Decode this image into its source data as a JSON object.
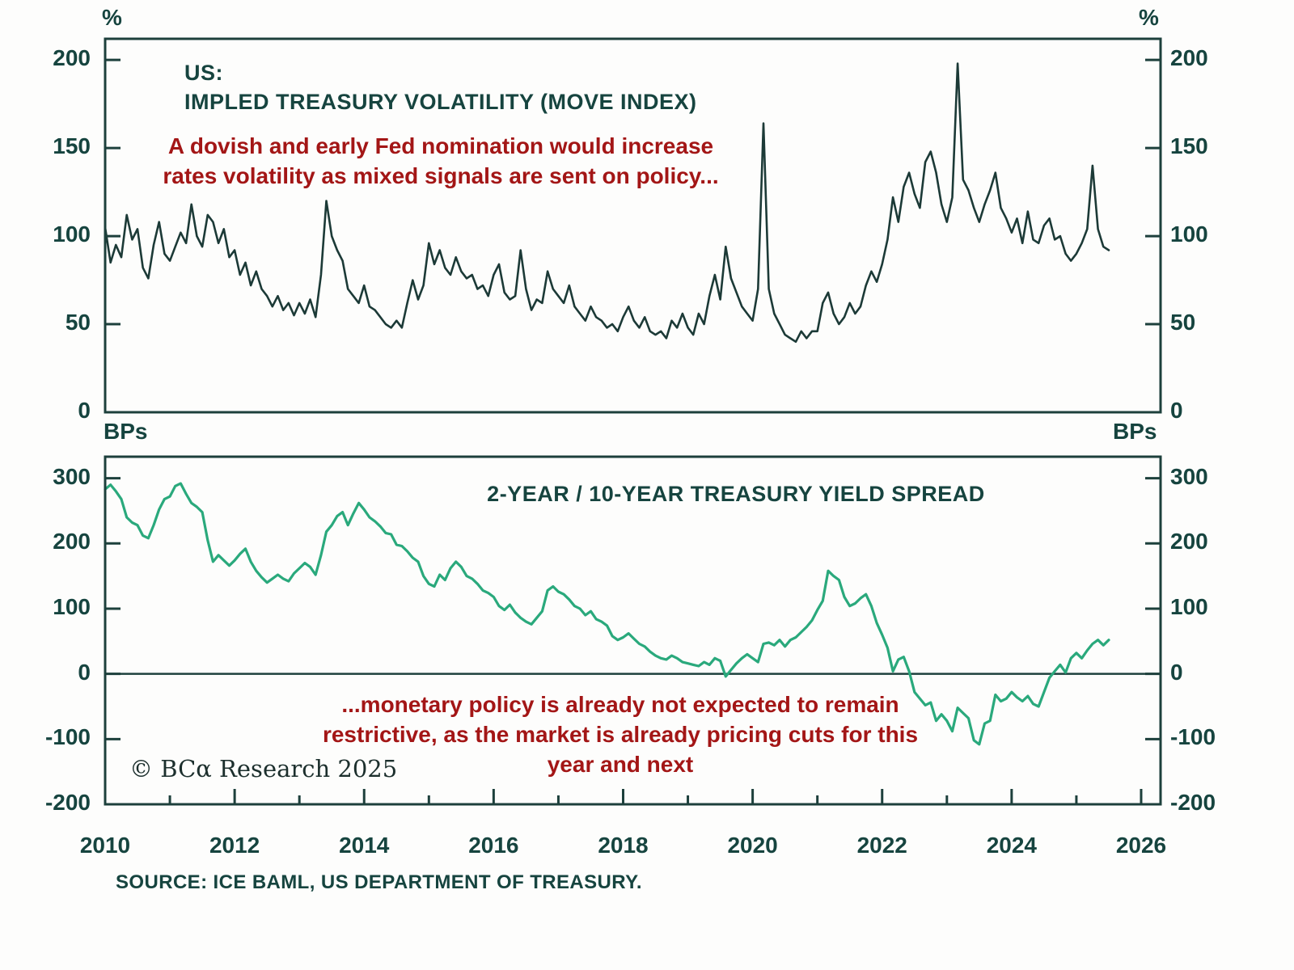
{
  "figure": {
    "copyright": "© BCα Research 2025",
    "source": "SOURCE: ICE BAML, US DEPARTMENT OF TREASURY."
  },
  "colors": {
    "text": "#16443f",
    "frame": "#1d403c",
    "red": "#a31616",
    "move_line": "#1c3a37",
    "spread_line": "#2aa97c"
  },
  "x_axis": {
    "xlim": [
      2010,
      2026.3
    ],
    "tick_labels": [
      2010,
      2012,
      2014,
      2016,
      2018,
      2020,
      2022,
      2024,
      2026
    ],
    "minor_ticks_every_year": true
  },
  "chart_data": [
    {
      "type": "line",
      "panel": "top",
      "unit": "%",
      "title_lines": [
        "US:",
        "IMPLED TREASURY VOLATILITY (MOVE INDEX)"
      ],
      "annotation": "A dovish and early Fed nomination would increase rates volatility as mixed signals are sent on policy...",
      "ylim": [
        0,
        212
      ],
      "yticks": [
        200,
        150,
        100,
        50,
        0
      ],
      "grid": false,
      "legend": "none",
      "x_start": 2010.0,
      "x_step": 0.0833333,
      "series": [
        {
          "name": "MOVE Index",
          "color_key": "move_line",
          "values": [
            105,
            85,
            95,
            88,
            112,
            98,
            104,
            82,
            76,
            95,
            108,
            90,
            86,
            94,
            102,
            96,
            118,
            100,
            94,
            112,
            108,
            96,
            104,
            88,
            92,
            78,
            85,
            72,
            80,
            70,
            66,
            60,
            66,
            58,
            62,
            55,
            62,
            56,
            64,
            54,
            78,
            120,
            100,
            92,
            86,
            70,
            66,
            62,
            72,
            60,
            58,
            54,
            50,
            48,
            52,
            48,
            62,
            75,
            64,
            72,
            96,
            84,
            92,
            82,
            78,
            88,
            80,
            76,
            78,
            70,
            72,
            66,
            78,
            84,
            68,
            64,
            66,
            92,
            70,
            58,
            64,
            62,
            80,
            70,
            66,
            62,
            72,
            60,
            56,
            52,
            60,
            54,
            52,
            48,
            50,
            46,
            54,
            60,
            52,
            48,
            54,
            46,
            44,
            46,
            42,
            52,
            48,
            56,
            48,
            44,
            56,
            50,
            66,
            78,
            64,
            94,
            76,
            68,
            60,
            56,
            52,
            70,
            164,
            70,
            56,
            50,
            44,
            42,
            40,
            46,
            42,
            46,
            46,
            62,
            68,
            56,
            50,
            54,
            62,
            56,
            60,
            72,
            80,
            74,
            84,
            98,
            122,
            108,
            128,
            136,
            124,
            116,
            142,
            148,
            136,
            118,
            108,
            122,
            198,
            132,
            126,
            116,
            108,
            118,
            126,
            136,
            116,
            110,
            102,
            110,
            96,
            114,
            98,
            96,
            106,
            110,
            98,
            100,
            90,
            86,
            90,
            96,
            104,
            140,
            104,
            94,
            92
          ]
        }
      ]
    },
    {
      "type": "line",
      "panel": "bottom",
      "unit": "BPs",
      "title_lines": [
        "2-YEAR / 10-YEAR TREASURY YIELD SPREAD"
      ],
      "annotation": "...monetary policy is already not expected to remain restrictive, as the market is already pricing cuts for this year and next",
      "ylim": [
        -200,
        333
      ],
      "yticks": [
        300,
        200,
        100,
        0,
        -100,
        -200
      ],
      "zero_line": true,
      "grid": false,
      "legend": "none",
      "x_start": 2010.0,
      "x_step": 0.0833333,
      "series": [
        {
          "name": "2-Year / 10-Year Treasury Yield Spread",
          "color_key": "spread_line",
          "values": [
            283,
            290,
            280,
            268,
            240,
            232,
            228,
            212,
            208,
            228,
            252,
            268,
            272,
            288,
            292,
            276,
            262,
            256,
            248,
            205,
            172,
            182,
            174,
            166,
            174,
            184,
            192,
            172,
            158,
            148,
            140,
            146,
            152,
            146,
            142,
            154,
            162,
            170,
            164,
            152,
            182,
            218,
            228,
            242,
            248,
            228,
            246,
            262,
            252,
            240,
            234,
            226,
            216,
            214,
            198,
            196,
            188,
            178,
            172,
            150,
            138,
            134,
            152,
            144,
            162,
            172,
            164,
            150,
            146,
            138,
            128,
            124,
            118,
            104,
            98,
            106,
            94,
            86,
            80,
            76,
            86,
            96,
            128,
            134,
            126,
            122,
            114,
            104,
            100,
            90,
            96,
            84,
            80,
            74,
            58,
            52,
            56,
            62,
            54,
            46,
            42,
            34,
            28,
            24,
            22,
            28,
            24,
            18,
            16,
            14,
            12,
            18,
            14,
            24,
            20,
            -4,
            6,
            16,
            24,
            30,
            24,
            18,
            46,
            48,
            44,
            52,
            42,
            52,
            56,
            64,
            72,
            82,
            98,
            112,
            158,
            150,
            144,
            118,
            104,
            108,
            116,
            122,
            104,
            78,
            60,
            40,
            4,
            22,
            26,
            4,
            -28,
            -38,
            -48,
            -44,
            -72,
            -62,
            -72,
            -88,
            -52,
            -60,
            -68,
            -102,
            -108,
            -76,
            -72,
            -32,
            -42,
            -38,
            -28,
            -36,
            -42,
            -34,
            -46,
            -50,
            -28,
            -6,
            4,
            14,
            2,
            24,
            32,
            24,
            36,
            46,
            52,
            44,
            52
          ]
        }
      ]
    }
  ]
}
